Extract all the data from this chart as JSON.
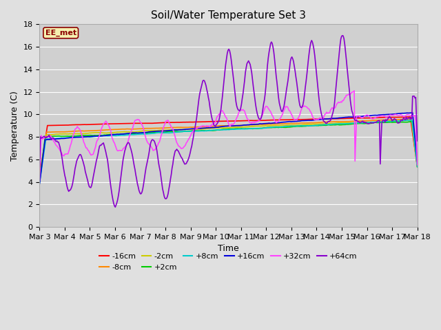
{
  "title": "Soil/Water Temperature Set 3",
  "xlabel": "Time",
  "ylabel": "Temperature (C)",
  "ylim": [
    0,
    18
  ],
  "xlim": [
    0,
    15
  ],
  "fig_bg": "#e0e0e0",
  "plot_bg": "#d0d0d0",
  "annotation_text": "EE_met",
  "annotation_bg": "#f5f0b0",
  "annotation_border": "#8B0000",
  "annotation_text_color": "#8B0000",
  "x_tick_labels": [
    "Mar 3",
    "Mar 4",
    "Mar 5",
    "Mar 6",
    "Mar 7",
    "Mar 8",
    "Mar 9",
    "Mar 10",
    "Mar 11",
    "Mar 12",
    "Mar 13",
    "Mar 14",
    "Mar 15",
    "Mar 16",
    "Mar 17",
    "Mar 18"
  ],
  "series_colors": {
    "-16cm": "#ff0000",
    "-8cm": "#ff8800",
    "-2cm": "#cccc00",
    "+2cm": "#00cc00",
    "+8cm": "#00cccc",
    "+16cm": "#0000dd",
    "+32cm": "#ff44ff",
    "+64cm": "#8800cc"
  },
  "legend_row1": [
    "-16cm",
    "-8cm",
    "-2cm",
    "+2cm",
    "+8cm",
    "+16cm"
  ],
  "legend_row2": [
    "+32cm",
    "+64cm"
  ]
}
